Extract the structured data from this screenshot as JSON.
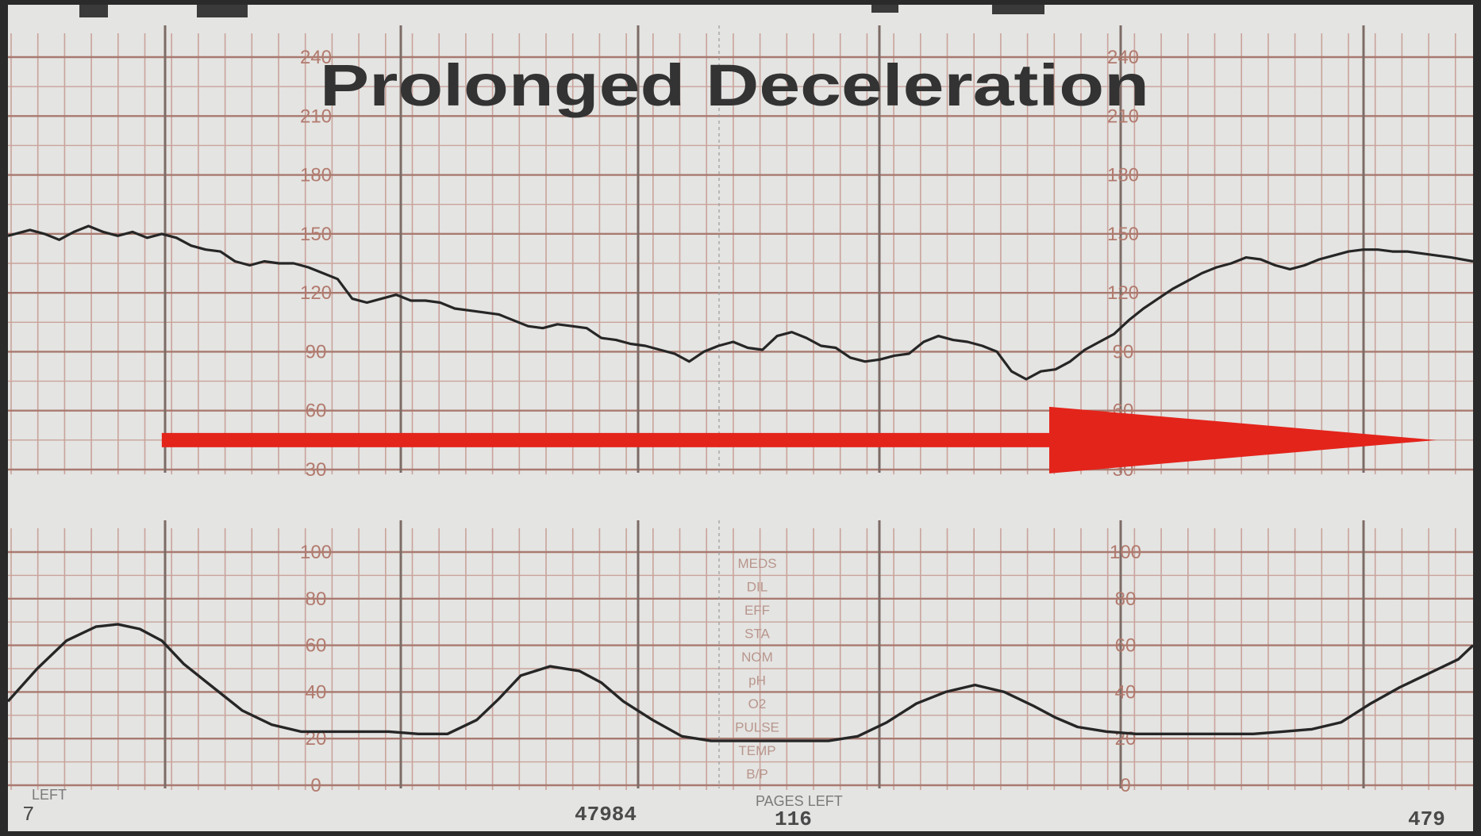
{
  "colors": {
    "paper": "#e4e4e2",
    "grid_minor": "#c9a39b",
    "grid_major": "#a87a70",
    "trace": "#262626",
    "arrow": "#e3241b",
    "frame": "#2a2a2a"
  },
  "chart_data": [
    {
      "type": "line",
      "title": "Prolonged Deceleration",
      "y_scale_labels": [
        "240",
        "210",
        "180",
        "150",
        "120",
        "90",
        "60",
        "30"
      ],
      "ylim": [
        30,
        240
      ],
      "xlim": [
        0,
        100
      ],
      "grid": true,
      "annotation": {
        "type": "arrow",
        "color": "#e3241b",
        "x_start": 10.5,
        "x_end": 97.5,
        "y": 45
      },
      "series": [
        {
          "x": [
            0,
            1.5,
            2.5,
            3.5,
            4.5,
            5.5,
            6.5,
            7.5,
            8.5,
            9.5,
            10.5,
            11.5,
            12.5,
            13.5,
            14.5,
            15.5,
            16.5,
            17.5,
            18.5,
            19.5,
            20.5,
            21.5,
            22.5,
            23.5,
            24.5,
            25.5,
            26.5,
            27.5,
            28.5,
            29.5,
            30.5,
            31.5,
            32.5,
            33.5,
            34.5,
            35.5,
            36.5,
            37.5,
            38.5,
            39.5,
            40.5,
            41.5,
            42.5,
            43.5,
            44.5,
            45.5,
            46.5,
            47.5,
            48.5,
            49.5,
            50.5,
            51.5,
            52.5,
            53.5,
            54.5,
            55.5,
            56.5,
            57.5,
            58.5,
            59.5,
            60.5,
            61.5,
            62.5,
            63.5,
            64.5,
            65.5,
            66.5,
            67.5,
            68.5,
            69.5,
            70.5,
            71.5,
            72.5,
            73.5,
            74.5,
            75.5,
            76.5,
            77.5,
            78.5,
            79.5,
            80.5,
            81.5,
            82.5,
            83.5,
            84.5,
            85.5,
            86.5,
            87.5,
            88.5,
            89.5,
            90.5,
            91.5,
            92.5,
            93.5,
            94.5,
            95.5,
            96.5,
            97.5,
            98.5,
            100
          ],
          "values": [
            149,
            152,
            150,
            147,
            151,
            154,
            151,
            149,
            151,
            148,
            150,
            148,
            144,
            142,
            141,
            136,
            134,
            136,
            135,
            135,
            133,
            130,
            127,
            117,
            115,
            117,
            119,
            116,
            116,
            115,
            112,
            111,
            110,
            109,
            106,
            103,
            102,
            104,
            103,
            102,
            97,
            96,
            94,
            93,
            91,
            89,
            85,
            90,
            93,
            95,
            92,
            91,
            98,
            100,
            97,
            93,
            92,
            87,
            85,
            86,
            88,
            89,
            95,
            98,
            96,
            95,
            93,
            90,
            80,
            76,
            80,
            81,
            85,
            91,
            95,
            99,
            106,
            112,
            117,
            122,
            126,
            130,
            133,
            135,
            138,
            137,
            134,
            132,
            134,
            137,
            139,
            141,
            142,
            142,
            141,
            141,
            140,
            139,
            138,
            136
          ]
        }
      ]
    },
    {
      "type": "line",
      "y_scale_labels": [
        "100",
        "80",
        "60",
        "40",
        "20",
        "0"
      ],
      "ylim": [
        0,
        100
      ],
      "xlim": [
        0,
        100
      ],
      "grid": true,
      "series": [
        {
          "x": [
            0,
            2,
            4,
            6,
            7.5,
            9,
            10.5,
            12,
            14,
            16,
            18,
            20,
            22,
            24,
            26,
            28,
            30,
            32,
            33.5,
            35,
            37,
            39,
            40.5,
            42,
            44,
            46,
            48,
            50,
            52,
            54,
            56,
            58,
            60,
            62,
            64,
            66,
            68,
            70,
            71.5,
            73,
            75,
            77,
            79,
            81,
            83,
            85,
            87,
            89,
            91,
            93,
            95,
            97,
            99,
            100
          ],
          "values": [
            36,
            50,
            62,
            68,
            69,
            67,
            62,
            52,
            42,
            32,
            26,
            23,
            23,
            23,
            23,
            22,
            22,
            28,
            37,
            47,
            51,
            49,
            44,
            36,
            28,
            21,
            19,
            19,
            19,
            19,
            19,
            21,
            27,
            35,
            40,
            43,
            40,
            34,
            29,
            25,
            23,
            22,
            22,
            22,
            22,
            22,
            23,
            24,
            27,
            35,
            42,
            48,
            54,
            60
          ]
        }
      ]
    }
  ],
  "footer": {
    "left_code": "7",
    "left_word": "LEFT",
    "center_number": "47984",
    "pages_left_label": "PAGES LEFT",
    "pages_left_value": "116",
    "right_number": "479"
  },
  "side_labels": [
    "MEDS",
    "DIL",
    "EFF",
    "STA",
    "NOM",
    "pH",
    "O2",
    "PULSE",
    "TEMP",
    "B/P"
  ]
}
